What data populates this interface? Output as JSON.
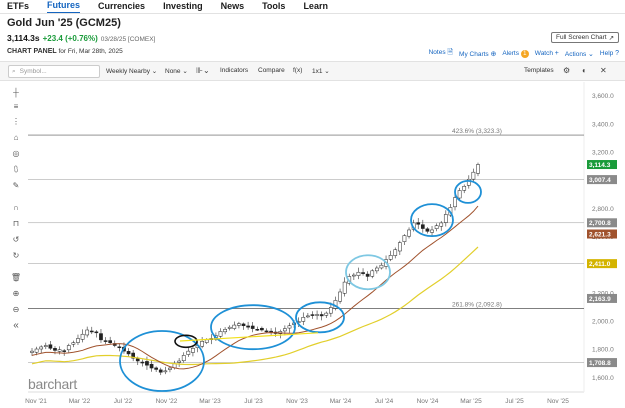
{
  "nav": {
    "items": [
      {
        "label": "ETFs",
        "active": false
      },
      {
        "label": "Futures",
        "active": true
      },
      {
        "label": "Currencies",
        "active": false
      },
      {
        "label": "Investing",
        "active": false
      },
      {
        "label": "News",
        "active": false
      },
      {
        "label": "Tools",
        "active": false
      },
      {
        "label": "Learn",
        "active": false
      }
    ]
  },
  "header": {
    "title": "Gold Jun '25 (GCM25)",
    "price": "3,114.3s",
    "change": "+23.4 (+0.76%)",
    "date_source": "03/28/25 [COMEX]",
    "full_screen_label": "Full Screen Chart"
  },
  "panel": {
    "label": "CHART PANEL",
    "subtitle": "for Fri, Mar 28th, 2025",
    "notes": "Notes",
    "my_charts": "My Charts",
    "alerts": "Alerts",
    "alerts_count": "1",
    "watch": "Watch",
    "actions": "Actions",
    "help": "Help"
  },
  "toolbar": {
    "search_placeholder": "Symbol...",
    "period": "Weekly Nearby",
    "overlay": "None",
    "indicators": "Indicators",
    "compare": "Compare",
    "fx": "f(x)",
    "ratio": "1x1",
    "templates": "Templates"
  },
  "branding": {
    "logo": "barchart"
  },
  "chart_data": {
    "type": "candlestick",
    "symbol": "GCM25",
    "x_tick_labels": [
      "Nov '21",
      "Mar '22",
      "Jul '22",
      "Nov '22",
      "Mar '23",
      "Jul '23",
      "Nov '23",
      "Mar '24",
      "Jul '24",
      "Nov '24",
      "Mar '25",
      "Jul '25",
      "Nov '25"
    ],
    "y_tick_labels": [
      "1,600.0",
      "1,800.0",
      "2,000.0",
      "2,200.0",
      "2,400.0",
      "2,600.0",
      "2,800.0",
      "3,000.0",
      "3,200.0",
      "3,400.0",
      "3,600.0"
    ],
    "ylim": [
      1500,
      3700
    ],
    "closes": [
      1790,
      1805,
      1820,
      1830,
      1810,
      1795,
      1800,
      1790,
      1830,
      1850,
      1880,
      1910,
      1940,
      1930,
      1920,
      1870,
      1860,
      1850,
      1830,
      1815,
      1790,
      1770,
      1740,
      1720,
      1710,
      1690,
      1670,
      1660,
      1640,
      1650,
      1670,
      1700,
      1720,
      1760,
      1790,
      1810,
      1830,
      1860,
      1870,
      1880,
      1900,
      1930,
      1945,
      1960,
      1975,
      1985,
      1970,
      1960,
      1950,
      1945,
      1940,
      1930,
      1925,
      1915,
      1930,
      1950,
      1970,
      1990,
      2000,
      2030,
      2040,
      2045,
      2050,
      2040,
      2060,
      2100,
      2150,
      2210,
      2280,
      2320,
      2330,
      2350,
      2340,
      2320,
      2360,
      2380,
      2400,
      2440,
      2470,
      2510,
      2560,
      2610,
      2650,
      2700,
      2690,
      2660,
      2640,
      2650,
      2680,
      2700,
      2760,
      2810,
      2880,
      2930,
      2960,
      3010,
      3060,
      3114.3
    ],
    "horizontal_levels": [
      {
        "label": "423.6% (3,323.3)",
        "value": 3323.3
      },
      {
        "label": "261.8% (2,092.8)",
        "value": 2092.8
      }
    ],
    "price_tags": [
      {
        "value": 3114.3,
        "label": "3,114.3",
        "color": "#1a9b3a"
      },
      {
        "value": 3007.4,
        "label": "3,007.4",
        "color": "#8a8a8a"
      },
      {
        "value": 2700.8,
        "label": "2,700.8",
        "color": "#8a8a8a"
      },
      {
        "value": 2621.3,
        "label": "2,621.3",
        "color": "#a0522d"
      },
      {
        "value": 2411.0,
        "label": "2,411.0",
        "color": "#d4b400"
      },
      {
        "value": 2163.9,
        "label": "2,163.9",
        "color": "#8a8a8a"
      },
      {
        "value": 1708.8,
        "label": "1,708.8",
        "color": "#8a8a8a"
      }
    ],
    "moving_averages": [
      {
        "color": "#a0522d",
        "end_value": 2621.3
      },
      {
        "color": "#e2cf2b",
        "end_value": 2411.0
      }
    ],
    "annotations": "blue ellipses around consolidation zones; one black ellipse near Mar '23",
    "grid": false
  }
}
